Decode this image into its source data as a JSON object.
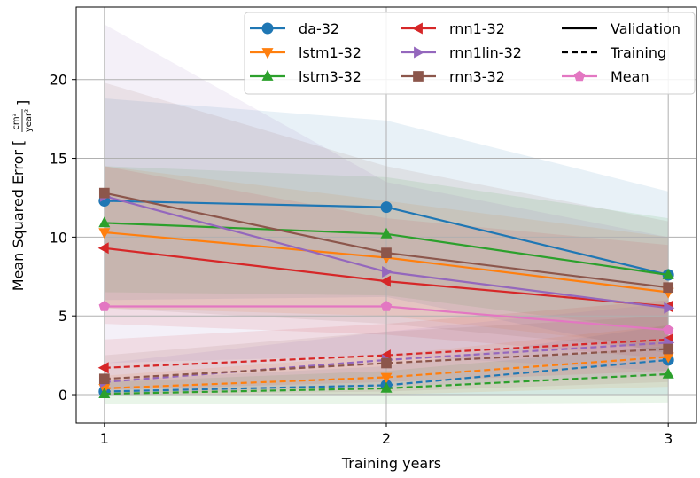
{
  "chart_data": {
    "type": "line",
    "xlabel": "Training years",
    "ylabel": "Mean Squared Error",
    "ylabel_unit_num": "cm²",
    "ylabel_unit_den": "year²",
    "x": [
      1,
      2,
      3
    ],
    "xticks": [
      "1",
      "2",
      "3"
    ],
    "yticks": [
      "0",
      "5",
      "10",
      "15",
      "20"
    ],
    "xlim": [
      0.9,
      3.1
    ],
    "ylim": [
      -1.8,
      24.6
    ],
    "grid": true,
    "legend_position": "top-right",
    "series": [
      {
        "name": "da-32",
        "color": "#1f77b4",
        "marker": "circle",
        "validation": [
          12.3,
          11.9,
          7.6
        ],
        "training": [
          0.2,
          0.6,
          2.2
        ],
        "val_band": [
          [
            6.0,
            18.8
          ],
          [
            6.2,
            17.4
          ],
          [
            2.6,
            12.9
          ]
        ],
        "train_band": [
          [
            0.0,
            0.9
          ],
          [
            0.0,
            1.8
          ],
          [
            0.0,
            4.4
          ]
        ]
      },
      {
        "name": "lstm1-32",
        "color": "#ff7f0e",
        "marker": "triangle-down",
        "validation": [
          10.3,
          8.7,
          6.5
        ],
        "training": [
          0.4,
          1.1,
          2.4
        ],
        "val_band": [
          [
            5.5,
            14.5
          ],
          [
            5.0,
            12.3
          ],
          [
            3.0,
            10.0
          ]
        ],
        "train_band": [
          [
            0.0,
            1.2
          ],
          [
            0.0,
            2.5
          ],
          [
            0.5,
            4.4
          ]
        ]
      },
      {
        "name": "lstm3-32",
        "color": "#2ca02c",
        "marker": "triangle-up",
        "validation": [
          10.9,
          10.2,
          7.6
        ],
        "training": [
          0.05,
          0.4,
          1.3
        ],
        "val_band": [
          [
            6.5,
            14.5
          ],
          [
            6.3,
            13.8
          ],
          [
            4.0,
            11.2
          ]
        ],
        "train_band": [
          [
            -0.6,
            0.8
          ],
          [
            -0.6,
            1.5
          ],
          [
            -0.5,
            3.1
          ]
        ]
      },
      {
        "name": "rnn1-32",
        "color": "#d62728",
        "marker": "triangle-left",
        "validation": [
          9.3,
          7.2,
          5.6
        ],
        "training": [
          1.7,
          2.5,
          3.5
        ],
        "val_band": [
          [
            4.5,
            14.5
          ],
          [
            3.8,
            11.2
          ],
          [
            2.3,
            9.5
          ]
        ],
        "train_band": [
          [
            0.3,
            3.5
          ],
          [
            0.8,
            4.5
          ],
          [
            1.5,
            6.0
          ]
        ]
      },
      {
        "name": "rnn1lin-32",
        "color": "#9467bd",
        "marker": "triangle-right",
        "validation": [
          12.6,
          7.8,
          5.5
        ],
        "training": [
          0.8,
          2.2,
          3.3
        ],
        "val_band": [
          [
            2.0,
            23.5
          ],
          [
            2.5,
            13.5
          ],
          [
            1.5,
            10.0
          ]
        ],
        "train_band": [
          [
            0.0,
            2.0
          ],
          [
            0.5,
            4.0
          ],
          [
            1.2,
            5.8
          ]
        ]
      },
      {
        "name": "rnn3-32",
        "color": "#8c564b",
        "marker": "square",
        "validation": [
          12.8,
          9.0,
          6.8
        ],
        "training": [
          1.0,
          2.0,
          2.9
        ],
        "val_band": [
          [
            5.5,
            19.8
          ],
          [
            4.5,
            14.5
          ],
          [
            2.8,
            11.0
          ]
        ],
        "train_band": [
          [
            0.0,
            2.5
          ],
          [
            0.2,
            4.0
          ],
          [
            0.8,
            5.0
          ]
        ]
      },
      {
        "name": "Mean",
        "color": "#e377c2",
        "marker": "pentagon",
        "validation": [
          5.6,
          5.6,
          4.1
        ],
        "training": null,
        "val_band": null,
        "train_band": null
      }
    ],
    "style_legend": [
      {
        "label": "Validation",
        "style": "solid"
      },
      {
        "label": "Training",
        "style": "dashed"
      }
    ]
  }
}
